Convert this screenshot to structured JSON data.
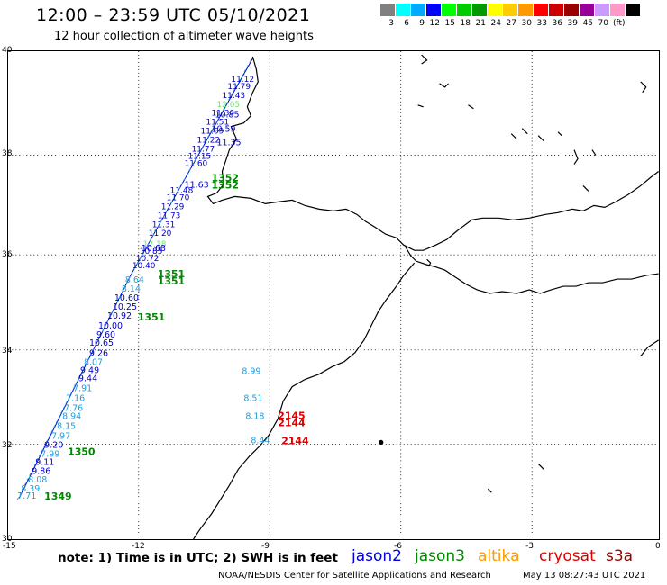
{
  "header": {
    "title": "12:00 – 23:59 UTC 05/10/2021",
    "subtitle": "12 hour collection of altimeter wave heights"
  },
  "legend": {
    "colors": [
      "#808080",
      "#00ffff",
      "#00aaff",
      "#0000ff",
      "#00ff00",
      "#00cc00",
      "#009900",
      "#ffff00",
      "#ffcc00",
      "#ff9900",
      "#ff0000",
      "#cc0000",
      "#990000",
      "#990099",
      "#cc99ff",
      "#ff99cc",
      "#000000"
    ],
    "labels": [
      "3",
      "6",
      "9",
      "12",
      "15",
      "18",
      "21",
      "24",
      "27",
      "30",
      "33",
      "36",
      "39",
      "45",
      "70",
      "(ft)"
    ]
  },
  "axes": {
    "lat_labels": [
      "40",
      "38",
      "36",
      "34",
      "32",
      "30"
    ],
    "lon_labels": [
      "-15",
      "-12",
      "-9",
      "-6",
      "-3",
      "0"
    ]
  },
  "passes": [
    {
      "label": "1352",
      "color": "#008800"
    },
    {
      "label": "1352",
      "color": "#008800"
    },
    {
      "label": "1351",
      "color": "#008800"
    },
    {
      "label": "1351",
      "color": "#008800"
    },
    {
      "label": "1351",
      "color": "#008800"
    },
    {
      "label": "1350",
      "color": "#008800"
    },
    {
      "label": "1349",
      "color": "#008800"
    },
    {
      "label": "2145",
      "color": "#dd0000"
    },
    {
      "label": "2144",
      "color": "#dd0000"
    },
    {
      "label": "2144",
      "color": "#dd0000"
    }
  ],
  "track_values": [
    {
      "v": "10.85",
      "c": "#0000cc"
    },
    {
      "v": "10.59",
      "c": "#0000cc"
    },
    {
      "v": "11.35",
      "c": "#0000cc"
    },
    {
      "v": "11.63",
      "c": "#0000cc"
    },
    {
      "v": "10.68",
      "c": "#0000cc"
    },
    {
      "v": "8.64",
      "c": "#1aa0e0"
    },
    {
      "v": "8.14",
      "c": "#1aa0e0"
    },
    {
      "v": "10.60",
      "c": "#0000cc"
    },
    {
      "v": "10.25",
      "c": "#0000cc"
    },
    {
      "v": "10.92",
      "c": "#0000cc"
    },
    {
      "v": "10.00",
      "c": "#0000cc"
    },
    {
      "v": "9.60",
      "c": "#0000cc"
    },
    {
      "v": "10.65",
      "c": "#0000cc"
    },
    {
      "v": "9.26",
      "c": "#0000cc"
    },
    {
      "v": "8.07",
      "c": "#1aa0e0"
    },
    {
      "v": "9.49",
      "c": "#0000cc"
    },
    {
      "v": "9.44",
      "c": "#0000cc"
    },
    {
      "v": "7.91",
      "c": "#1aa0e0"
    },
    {
      "v": "7.16",
      "c": "#1aa0e0"
    },
    {
      "v": "7.76",
      "c": "#1aa0e0"
    },
    {
      "v": "8.94",
      "c": "#1aa0e0"
    },
    {
      "v": "8.15",
      "c": "#1aa0e0"
    },
    {
      "v": "7.97",
      "c": "#1aa0e0"
    },
    {
      "v": "9.20",
      "c": "#0000cc"
    },
    {
      "v": "7.99",
      "c": "#1aa0e0"
    },
    {
      "v": "9.11",
      "c": "#0000cc"
    },
    {
      "v": "9.86",
      "c": "#0000cc"
    },
    {
      "v": "8.08",
      "c": "#1aa0e0"
    },
    {
      "v": "8.39",
      "c": "#1aa0e0"
    },
    {
      "v": "7.71",
      "c": "#1aa0e0"
    },
    {
      "v": "8.99",
      "c": "#1aa0e0"
    },
    {
      "v": "8.51",
      "c": "#1aa0e0"
    },
    {
      "v": "8.18",
      "c": "#1aa0e0"
    },
    {
      "v": "8.44",
      "c": "#1aa0e0"
    }
  ],
  "footer": {
    "note": "note: 1) Time is in UTC; 2) SWH is in feet",
    "satellites": [
      {
        "name": "jason2",
        "color": "#0000dd"
      },
      {
        "name": "jason3",
        "color": "#008800"
      },
      {
        "name": "altika",
        "color": "#ff9900"
      },
      {
        "name": "cryosat",
        "color": "#dd0000"
      },
      {
        "name": "s3a",
        "color": "#990000"
      }
    ],
    "credit": "NOAA/NESDIS Center for Satellite Applications and Research",
    "timestamp": "May 13 08:27:43 UTC 2021"
  }
}
